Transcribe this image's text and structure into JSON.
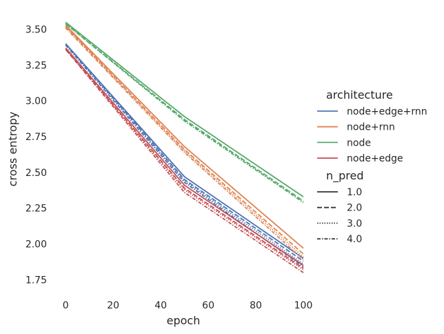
{
  "chart_data": {
    "type": "line",
    "xlabel": "epoch",
    "ylabel": "cross entropy",
    "xlim": [
      -5,
      100
    ],
    "ylim": [
      1.66,
      3.58
    ],
    "x_ticks": [
      0,
      20,
      40,
      60,
      80,
      100
    ],
    "y_ticks": [
      1.75,
      2.0,
      2.25,
      2.5,
      2.75,
      3.0,
      3.25,
      3.5
    ],
    "x_tick_labels": [
      "0",
      "20",
      "40",
      "60",
      "80",
      "100"
    ],
    "y_tick_labels": [
      "1.75",
      "2.00",
      "2.25",
      "2.50",
      "2.75",
      "3.00",
      "3.25",
      "3.50"
    ],
    "grid": false,
    "legend_position": "right",
    "hue_title": "architecture",
    "style_title": "n_pred",
    "hue_entries": [
      {
        "label": "node+edge+rnn",
        "color": "#4c72b0"
      },
      {
        "label": "node+rnn",
        "color": "#dd8452"
      },
      {
        "label": "node",
        "color": "#55a868"
      },
      {
        "label": "node+edge",
        "color": "#c44e52"
      }
    ],
    "style_entries": [
      {
        "label": "1.0",
        "dash": "solid"
      },
      {
        "label": "2.0",
        "dash": "dashed"
      },
      {
        "label": "3.0",
        "dash": "dotted"
      },
      {
        "label": "4.0",
        "dash": "dashdot"
      }
    ],
    "series": [
      {
        "architecture": "node+edge+rnn",
        "n_pred": "1.0",
        "x": [
          0,
          50,
          100
        ],
        "y": [
          3.4,
          2.47,
          1.9
        ]
      },
      {
        "architecture": "node+edge+rnn",
        "n_pred": "2.0",
        "x": [
          0,
          50,
          100
        ],
        "y": [
          3.4,
          2.45,
          1.88
        ]
      },
      {
        "architecture": "node+edge+rnn",
        "n_pred": "3.0",
        "x": [
          0,
          50,
          100
        ],
        "y": [
          3.39,
          2.44,
          1.86
        ]
      },
      {
        "architecture": "node+edge+rnn",
        "n_pred": "4.0",
        "x": [
          0,
          50,
          100
        ],
        "y": [
          3.39,
          2.43,
          1.84
        ]
      },
      {
        "architecture": "node+rnn",
        "n_pred": "1.0",
        "x": [
          0,
          50,
          100
        ],
        "y": [
          3.53,
          2.68,
          1.97
        ]
      },
      {
        "architecture": "node+rnn",
        "n_pred": "2.0",
        "x": [
          0,
          50,
          100
        ],
        "y": [
          3.52,
          2.66,
          1.93
        ]
      },
      {
        "architecture": "node+rnn",
        "n_pred": "3.0",
        "x": [
          0,
          50,
          100
        ],
        "y": [
          3.52,
          2.65,
          1.91
        ]
      },
      {
        "architecture": "node+rnn",
        "n_pred": "4.0",
        "x": [
          0,
          50,
          100
        ],
        "y": [
          3.51,
          2.64,
          1.89
        ]
      },
      {
        "architecture": "node",
        "n_pred": "1.0",
        "x": [
          0,
          50,
          100
        ],
        "y": [
          3.55,
          2.89,
          2.33
        ]
      },
      {
        "architecture": "node",
        "n_pred": "2.0",
        "x": [
          0,
          50,
          100
        ],
        "y": [
          3.54,
          2.87,
          2.3
        ]
      },
      {
        "architecture": "node",
        "n_pred": "3.0",
        "x": [
          0,
          50,
          100
        ],
        "y": [
          3.54,
          2.86,
          2.29
        ]
      },
      {
        "architecture": "node",
        "n_pred": "4.0",
        "x": [
          0,
          50,
          100
        ],
        "y": [
          3.54,
          2.86,
          2.29
        ]
      },
      {
        "architecture": "node+edge",
        "n_pred": "1.0",
        "x": [
          0,
          50,
          100
        ],
        "y": [
          3.37,
          2.41,
          1.85
        ]
      },
      {
        "architecture": "node+edge",
        "n_pred": "2.0",
        "x": [
          0,
          50,
          100
        ],
        "y": [
          3.36,
          2.39,
          1.83
        ]
      },
      {
        "architecture": "node+edge",
        "n_pred": "3.0",
        "x": [
          0,
          50,
          100
        ],
        "y": [
          3.36,
          2.38,
          1.82
        ]
      },
      {
        "architecture": "node+edge",
        "n_pred": "4.0",
        "x": [
          0,
          50,
          100
        ],
        "y": [
          3.36,
          2.36,
          1.8
        ]
      }
    ]
  }
}
